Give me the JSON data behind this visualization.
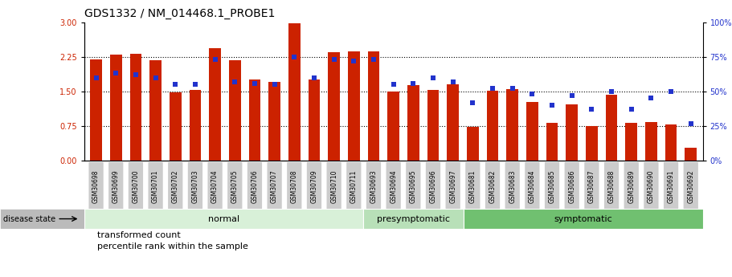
{
  "title": "GDS1332 / NM_014468.1_PROBE1",
  "categories": [
    "GSM30698",
    "GSM30699",
    "GSM30700",
    "GSM30701",
    "GSM30702",
    "GSM30703",
    "GSM30704",
    "GSM30705",
    "GSM30706",
    "GSM30707",
    "GSM30708",
    "GSM30709",
    "GSM30710",
    "GSM30711",
    "GSM30693",
    "GSM30694",
    "GSM30695",
    "GSM30696",
    "GSM30697",
    "GSM30681",
    "GSM30682",
    "GSM30683",
    "GSM30684",
    "GSM30685",
    "GSM30686",
    "GSM30687",
    "GSM30688",
    "GSM30689",
    "GSM30690",
    "GSM30691",
    "GSM30692"
  ],
  "red_values": [
    2.2,
    2.3,
    2.32,
    2.18,
    1.48,
    1.53,
    2.43,
    2.18,
    1.75,
    1.7,
    2.97,
    1.75,
    2.35,
    2.37,
    2.37,
    1.5,
    1.64,
    1.53,
    1.65,
    0.73,
    1.52,
    1.55,
    1.27,
    0.82,
    1.22,
    0.75,
    1.42,
    0.82,
    0.84,
    0.78,
    0.28
  ],
  "blue_values_pct": [
    60,
    63,
    62,
    60,
    55,
    55,
    73,
    57,
    56,
    55,
    75,
    60,
    73,
    72,
    73,
    55,
    56,
    60,
    57,
    42,
    52,
    52,
    48,
    40,
    47,
    37,
    50,
    37,
    45,
    50,
    27
  ],
  "groups": [
    {
      "label": "normal",
      "start": 0,
      "end": 14
    },
    {
      "label": "presymptomatic",
      "start": 14,
      "end": 19
    },
    {
      "label": "symptomatic",
      "start": 19,
      "end": 31
    }
  ],
  "group_colors": [
    "#d8f0d8",
    "#b8e0b8",
    "#70c070"
  ],
  "ylim_left": [
    0,
    3
  ],
  "ylim_right": [
    0,
    100
  ],
  "yticks_left": [
    0,
    0.75,
    1.5,
    2.25,
    3
  ],
  "yticks_right": [
    0,
    25,
    50,
    75,
    100
  ],
  "bar_color": "#cc2200",
  "dot_color": "#2233cc",
  "bg_color": "#ffffff",
  "label_bg": "#cccccc"
}
